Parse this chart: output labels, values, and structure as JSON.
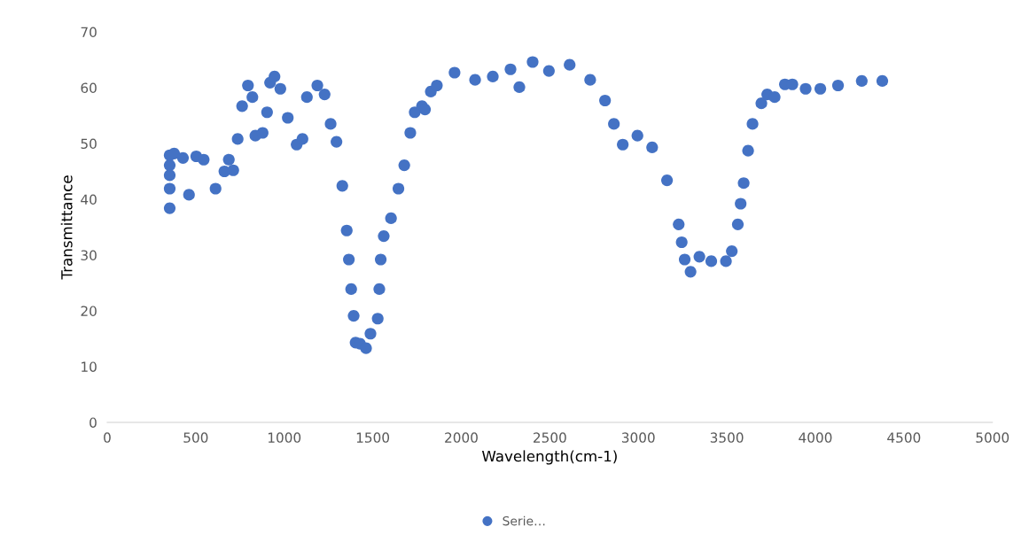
{
  "chart_data": {
    "type": "scatter",
    "xlabel": "Wavelength(cm-1)",
    "ylabel": "Transmittance",
    "x": [
      353,
      353,
      353,
      353,
      353,
      378,
      428,
      462,
      503,
      545,
      612,
      662,
      687,
      712,
      737,
      762,
      795,
      820,
      837,
      878,
      903,
      920,
      945,
      978,
      1020,
      1070,
      1103,
      1128,
      1187,
      1228,
      1262,
      1295,
      1328,
      1353,
      1365,
      1378,
      1392,
      1403,
      1428,
      1462,
      1487,
      1528,
      1537,
      1545,
      1562,
      1603,
      1645,
      1678,
      1712,
      1737,
      1778,
      1795,
      1828,
      1862,
      1962,
      2078,
      2178,
      2278,
      2328,
      2403,
      2495,
      2612,
      2728,
      2812,
      2862,
      2912,
      2995,
      3078,
      3162,
      3228,
      3245,
      3262,
      3295,
      3345,
      3412,
      3495,
      3528,
      3562,
      3578,
      3595,
      3620,
      3645,
      3695,
      3728,
      3770,
      3828,
      3870,
      3945,
      4028,
      4128,
      4262,
      4378
    ],
    "series": [
      {
        "name": "Serie…",
        "color": "#4472c4",
        "values": [
          38.4,
          41.9,
          44.3,
          46.1,
          47.9,
          48.2,
          47.4,
          40.8,
          47.7,
          47.1,
          41.9,
          45,
          47.1,
          45.2,
          50.8,
          56.7,
          60.4,
          58.3,
          51.4,
          51.9,
          55.6,
          60.9,
          62.0,
          59.8,
          54.6,
          49.8,
          50.8,
          58.3,
          60.4,
          58.8,
          53.5,
          50.3,
          42.4,
          34.4,
          29.2,
          23.9,
          19.1,
          14.3,
          14.1,
          13.3,
          15.9,
          18.6,
          23.9,
          29.2,
          33.4,
          36.6,
          41.9,
          46.1,
          51.9,
          55.6,
          56.7,
          56.1,
          59.3,
          60.4,
          62.7,
          61.4,
          62.0,
          63.3,
          60.1,
          64.6,
          63.0,
          64.1,
          61.4,
          57.7,
          53.5,
          49.8,
          51.4,
          49.3,
          43.4,
          35.5,
          32.3,
          29.2,
          27.0,
          29.7,
          28.9,
          28.9,
          30.7,
          35.5,
          39.2,
          42.9,
          48.7,
          53.5,
          57.2,
          58.8,
          58.3,
          60.6,
          60.6,
          59.8,
          59.8,
          60.4,
          61.2,
          61.2
        ]
      }
    ],
    "xlim": [
      0,
      5000
    ],
    "xticks": [
      0,
      500,
      1000,
      1500,
      2000,
      2500,
      3000,
      3500,
      4000,
      4500,
      5000
    ],
    "ylim": [
      0,
      70
    ],
    "yticks": [
      0,
      10,
      20,
      30,
      40,
      50,
      60,
      70
    ],
    "legend": "bottom",
    "marker": "circle"
  }
}
